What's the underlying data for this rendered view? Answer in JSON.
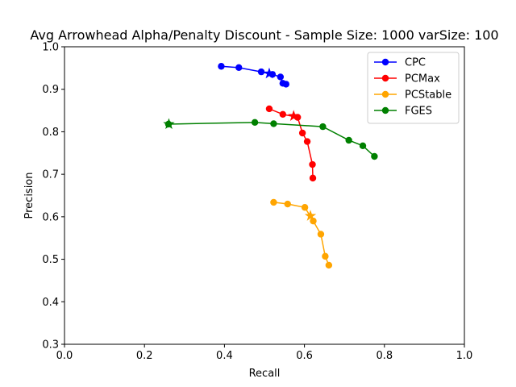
{
  "chart_data": {
    "type": "line",
    "title": "Avg Arrowhead Alpha/Penalty Discount - Sample Size: 1000 varSize: 100",
    "xlabel": "Recall",
    "ylabel": "Precision",
    "xlim": [
      0.0,
      1.0
    ],
    "ylim": [
      0.3,
      1.0
    ],
    "xticks": [
      "0.0",
      "0.2",
      "0.4",
      "0.6",
      "0.8",
      "1.0"
    ],
    "yticks": [
      "0.3",
      "0.4",
      "0.5",
      "0.6",
      "0.7",
      "0.8",
      "0.9",
      "1.0"
    ],
    "grid": false,
    "legend_position": "top-right",
    "series": [
      {
        "name": "CPC",
        "color": "#0000ff",
        "x": [
          0.392,
          0.436,
          0.492,
          0.52,
          0.54,
          0.546,
          0.554
        ],
        "y": [
          0.954,
          0.951,
          0.941,
          0.935,
          0.929,
          0.914,
          0.912
        ],
        "star": {
          "x": 0.512,
          "y": 0.937
        }
      },
      {
        "name": "PCMax",
        "color": "#ff0000",
        "x": [
          0.512,
          0.546,
          0.583,
          0.595,
          0.607,
          0.62,
          0.621
        ],
        "y": [
          0.854,
          0.841,
          0.834,
          0.797,
          0.777,
          0.723,
          0.691
        ],
        "star": {
          "x": 0.573,
          "y": 0.837
        }
      },
      {
        "name": "PCStable",
        "color": "#ffa500",
        "x": [
          0.523,
          0.558,
          0.601,
          0.622,
          0.641,
          0.652,
          0.661
        ],
        "y": [
          0.634,
          0.63,
          0.622,
          0.59,
          0.559,
          0.507,
          0.486
        ],
        "star": {
          "x": 0.615,
          "y": 0.602
        }
      },
      {
        "name": "FGES",
        "color": "#008000",
        "x": [
          0.26,
          0.476,
          0.523,
          0.646,
          0.711,
          0.746,
          0.775
        ],
        "y": [
          0.818,
          0.822,
          0.819,
          0.812,
          0.78,
          0.767,
          0.742
        ],
        "star": {
          "x": 0.261,
          "y": 0.818
        }
      }
    ]
  }
}
